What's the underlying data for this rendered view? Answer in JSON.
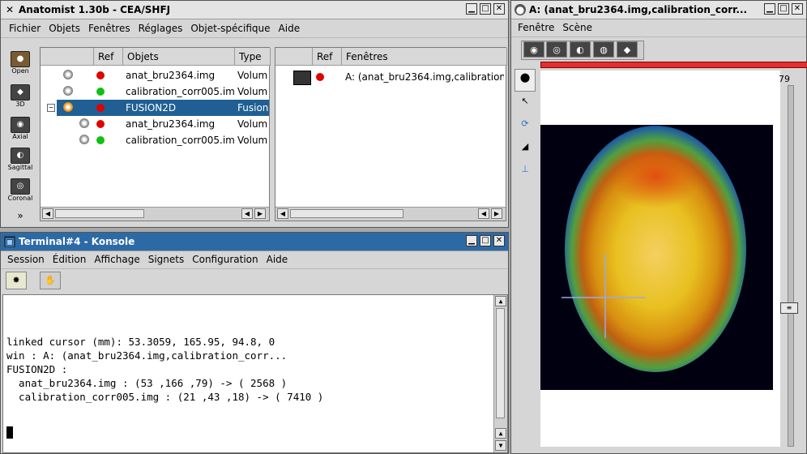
{
  "anatomist": {
    "title": "Anatomist 1.30b - CEA/SHFJ",
    "menu": [
      "Fichier",
      "Objets",
      "Fenêtres",
      "Réglages",
      "Objet-spécifique",
      "Aide"
    ],
    "side_tools": [
      "Open",
      "3D",
      "Axial",
      "Sagittal",
      "Coronal"
    ],
    "objects_panel": {
      "headers": [
        "Ref",
        "Objets",
        "Type"
      ],
      "rows": [
        {
          "name": "anat_bru2364.img",
          "type": "Volum",
          "ref": "red"
        },
        {
          "name": "calibration_corr005.img",
          "type": "Volum",
          "ref": "green"
        },
        {
          "name": "FUSION2D",
          "type": "Fusion",
          "ref": "red"
        },
        {
          "name": "anat_bru2364.img",
          "type": "Volum",
          "ref": "red"
        },
        {
          "name": "calibration_corr005.img",
          "type": "Volum",
          "ref": "green"
        }
      ]
    },
    "windows_panel": {
      "headers": [
        "Ref",
        "Fenêtres"
      ],
      "rows": [
        {
          "name": "A: (anat_bru2364.img,calibration_",
          "ref": "red"
        }
      ]
    }
  },
  "konsole": {
    "title": "Terminal#4 - Konsole",
    "menu": [
      "Session",
      "Édition",
      "Affichage",
      "Signets",
      "Configuration",
      "Aide"
    ],
    "lines": [
      "linked cursor (mm): 53.3059, 165.95, 94.8, 0",
      "win : A: (anat_bru2364.img,calibration_corr...",
      "FUSION2D :",
      "  anat_bru2364.img : (53 ,166 ,79) -> ( 2568 )",
      "  calibration_corr005.img : (21 ,43 ,18) -> ( 7410 )"
    ]
  },
  "viewer": {
    "title": "A: (anat_bru2364.img,calibration_corr...",
    "menu": [
      "Fenêtre",
      "Scène"
    ],
    "slice_value": "79",
    "slice_fraction": 0.62
  },
  "colors": {
    "active_title": "#2c6aa6",
    "selection": "#1f5f94",
    "ref_red": "#e00000",
    "ref_green": "#10c010",
    "progress_red": "#e03030"
  }
}
